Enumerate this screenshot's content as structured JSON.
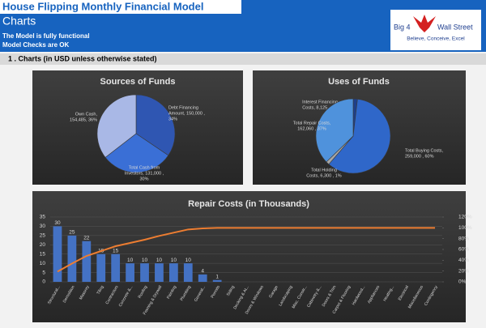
{
  "header": {
    "title": "House Flipping Monthly Financial Model",
    "subtitle": "Charts",
    "status": [
      "The Model is fully functional",
      "Model Checks are OK"
    ],
    "logo": {
      "left": "Big 4",
      "right": "Wall Street",
      "tagline": "Believe, Conceive, Excel"
    }
  },
  "section": "1 . Charts (in USD unless otherwise stated)",
  "chart_data": [
    {
      "type": "pie",
      "title": "Sources of Funds",
      "labels": [
        [
          "Debt Financing",
          "Amount, 150,000 ,",
          "34%"
        ],
        [
          "Total Cash from",
          "Investors, 131,000 ,",
          "30%"
        ],
        [
          "Own Cash,",
          "154,485, 36%"
        ]
      ],
      "values": [
        150000,
        131000,
        154485
      ],
      "colors": [
        "#2f56b2",
        "#3a6fd6",
        "#a9b8e6"
      ]
    },
    {
      "type": "pie",
      "title": "Uses of Funds",
      "labels": [
        [
          "Interest Financing",
          "Costs, 8,125 , 2%"
        ],
        [
          "Total Buying Costs,",
          "259,000 , 60%"
        ],
        [
          "Total Holding",
          "Costs, 6,300 , 1%"
        ],
        [
          "Total Repair Costs,",
          "162,060 , 37%"
        ]
      ],
      "values": [
        8125,
        259000,
        6300,
        162060
      ],
      "colors": [
        "#1e3f8a",
        "#2f67c9",
        "#a6a6a6",
        "#4f92dc"
      ]
    },
    {
      "type": "pareto",
      "title": "Repair Costs (in Thousands)",
      "categories": [
        "Structural...",
        "Demolition",
        "Masonry",
        "Tiling",
        "Contractors",
        "Concrete &...",
        "Roofing",
        "Framing & Drywall",
        "Painting",
        "Plumbing",
        "General...",
        "Permits",
        "Siding",
        "Decking & At...",
        "Doors & Windows",
        "Garage",
        "Landscaping",
        "Misc. Constr...",
        "Cabinetry &...",
        "Doors & Trim",
        "Carpet & Flooring",
        "Hardwood...",
        "Appliances",
        "Heating...",
        "Electrical",
        "Miscellaneous",
        "Contingency"
      ],
      "series": [
        {
          "color": "#4472c4",
          "values": [
            30,
            25,
            22,
            15,
            15,
            10,
            10,
            10,
            10,
            10,
            4,
            1,
            0,
            0,
            0,
            0,
            0,
            0,
            0,
            0,
            0,
            0,
            0,
            0,
            0,
            0,
            0
          ]
        },
        {
          "color": "#ed7d31",
          "axis": "y2",
          "values": [
            19,
            34,
            48,
            57,
            66,
            72,
            78,
            85,
            91,
            97,
            99,
            100,
            100,
            100,
            100,
            100,
            100,
            100,
            100,
            100,
            100,
            100,
            100,
            100,
            100,
            100,
            100
          ]
        }
      ],
      "ylim": [
        0,
        35
      ],
      "yticks": [
        0,
        5,
        10,
        15,
        20,
        25,
        30,
        35
      ],
      "y2lim": [
        0,
        120
      ],
      "y2ticks": [
        {
          "value": 0,
          "label": "0%"
        },
        {
          "value": 20,
          "label": "20%"
        },
        {
          "value": 40,
          "label": "40%"
        },
        {
          "value": 60,
          "label": "60%"
        },
        {
          "value": 80,
          "label": "80%"
        },
        {
          "value": 100,
          "label": "100%"
        },
        {
          "value": 120,
          "label": "120%"
        }
      ],
      "grid": true
    }
  ]
}
